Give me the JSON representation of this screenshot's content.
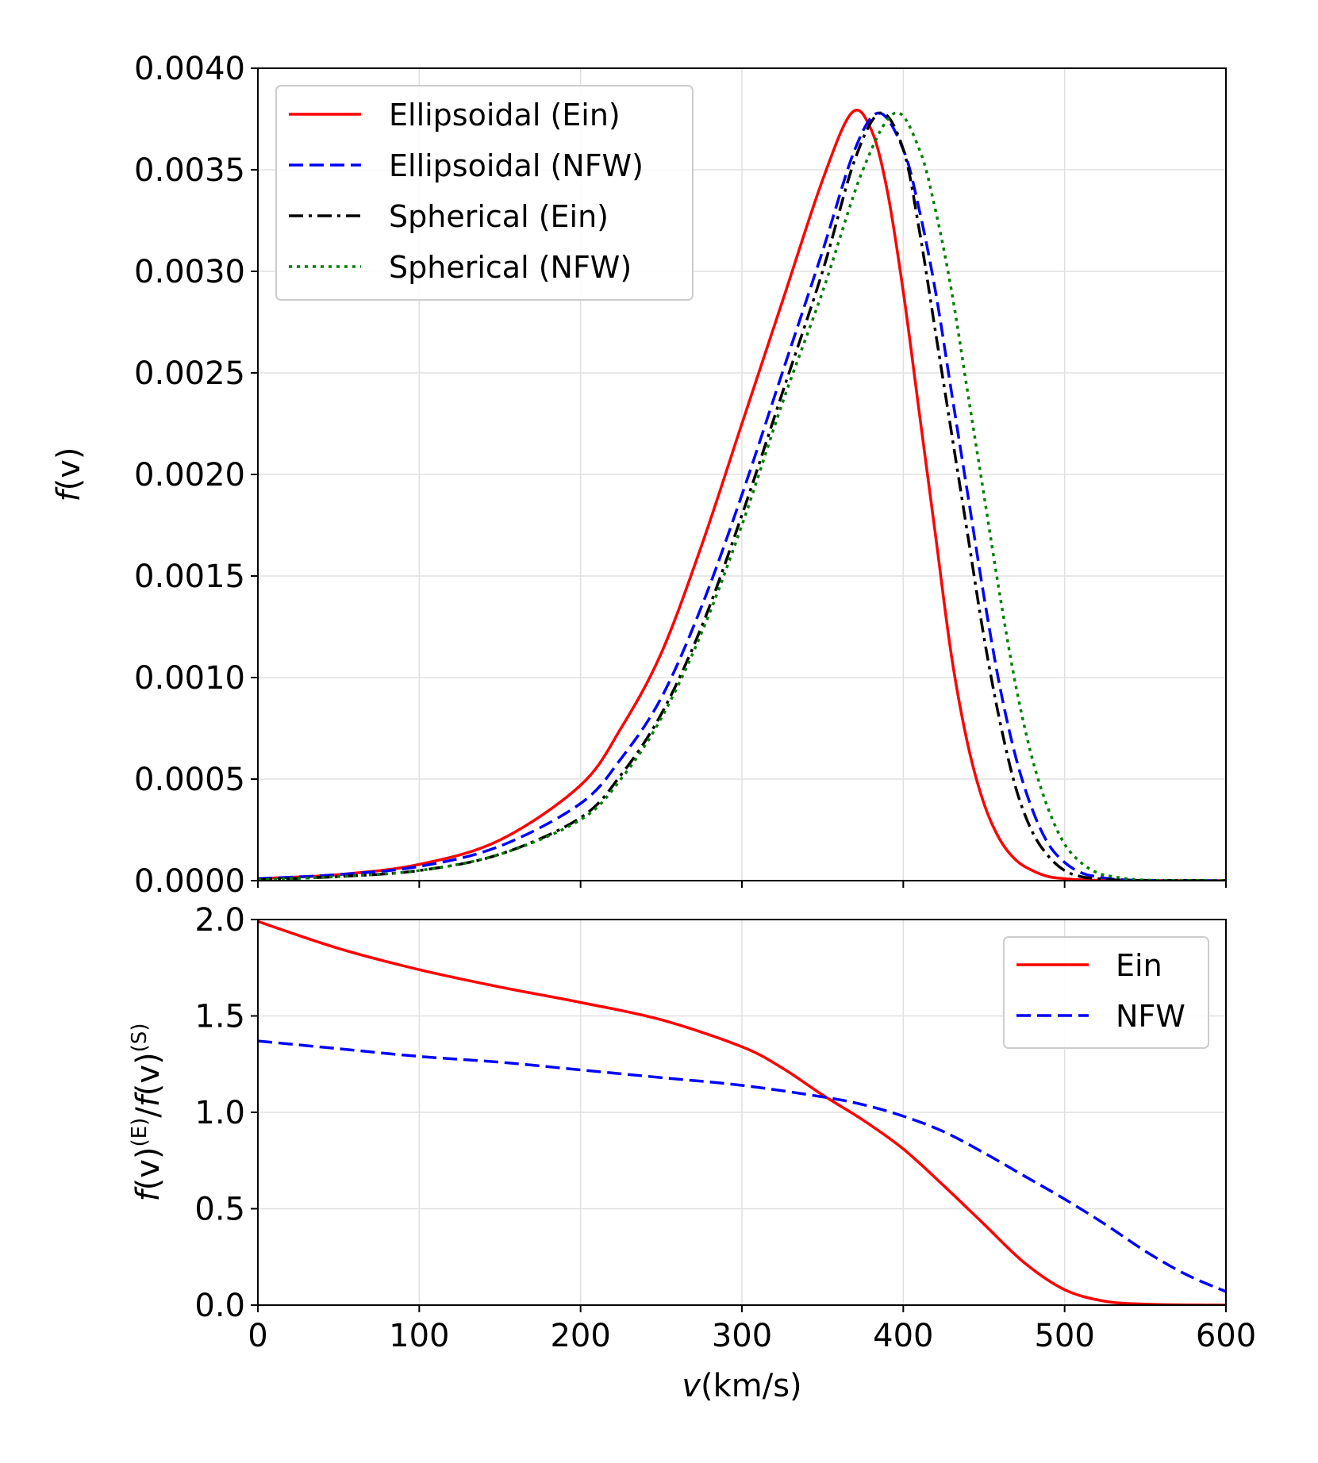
{
  "chart_data": [
    {
      "type": "line",
      "panel": "top",
      "ylabel": "f(v)",
      "xlabel": "",
      "xlim": [
        0,
        600
      ],
      "ylim": [
        0,
        0.004
      ],
      "xticks": [
        "0",
        "100",
        "200",
        "300",
        "400",
        "500",
        "600"
      ],
      "yticks": [
        "0.0000",
        "0.0005",
        "0.0010",
        "0.0015",
        "0.0020",
        "0.0025",
        "0.0030",
        "0.0035",
        "0.0040"
      ],
      "grid": true,
      "legend_position": "top-left",
      "series": [
        {
          "name": "Ellipsoidal (Ein)",
          "color": "#ff0000",
          "style": "solid",
          "x": [
            0,
            50,
            100,
            150,
            200,
            225,
            250,
            275,
            300,
            325,
            350,
            368,
            380,
            390,
            400,
            410,
            420,
            430,
            440,
            450,
            460,
            470,
            480,
            490,
            500,
            520,
            600
          ],
          "y": [
            1e-05,
            3e-05,
            8e-05,
            0.0002,
            0.00047,
            0.00075,
            0.00112,
            0.00165,
            0.00225,
            0.00285,
            0.00345,
            0.00378,
            0.0037,
            0.0034,
            0.0029,
            0.0023,
            0.0017,
            0.0011,
            0.00067,
            0.00038,
            0.0002,
            0.0001,
            5e-05,
            2e-05,
            1e-05,
            2e-06,
            0.0
          ]
        },
        {
          "name": "Ellipsoidal (NFW)",
          "color": "#0000ff",
          "style": "dashed",
          "x": [
            0,
            50,
            100,
            150,
            200,
            225,
            250,
            275,
            300,
            325,
            350,
            370,
            385,
            400,
            410,
            420,
            430,
            440,
            450,
            460,
            470,
            480,
            490,
            500,
            510,
            520,
            540,
            600
          ],
          "y": [
            1e-05,
            3e-05,
            7e-05,
            0.00017,
            0.00038,
            0.0006,
            0.0009,
            0.00135,
            0.0019,
            0.0025,
            0.0031,
            0.0036,
            0.00378,
            0.0036,
            0.0033,
            0.0029,
            0.0024,
            0.0019,
            0.0014,
            0.00095,
            0.0006,
            0.00035,
            0.00018,
            9e-05,
            4e-05,
            2e-05,
            3e-06,
            0.0
          ]
        },
        {
          "name": "Spherical (Ein)",
          "color": "#000000",
          "style": "dashdot",
          "x": [
            0,
            50,
            100,
            150,
            200,
            225,
            250,
            275,
            300,
            325,
            350,
            370,
            386,
            400,
            410,
            420,
            430,
            440,
            450,
            460,
            470,
            480,
            490,
            500,
            510,
            520,
            540,
            600
          ],
          "y": [
            5e-06,
            2e-05,
            5e-05,
            0.00013,
            0.00031,
            0.00052,
            0.00082,
            0.00125,
            0.0018,
            0.0024,
            0.003,
            0.00355,
            0.00378,
            0.0036,
            0.0032,
            0.0027,
            0.0022,
            0.0017,
            0.0012,
            0.00078,
            0.00045,
            0.00024,
            0.00012,
            5e-05,
            2e-05,
            1e-05,
            2e-06,
            0.0
          ]
        },
        {
          "name": "Spherical (NFW)",
          "color": "#008000",
          "style": "dotted",
          "x": [
            0,
            50,
            100,
            150,
            200,
            225,
            250,
            275,
            300,
            325,
            350,
            375,
            395,
            410,
            420,
            430,
            440,
            450,
            460,
            470,
            480,
            490,
            500,
            510,
            520,
            530,
            550,
            600
          ],
          "y": [
            5e-06,
            2e-05,
            5e-05,
            0.00013,
            0.0003,
            0.0005,
            0.0008,
            0.00122,
            0.00175,
            0.00235,
            0.0029,
            0.0035,
            0.00378,
            0.0036,
            0.0033,
            0.0029,
            0.0024,
            0.0019,
            0.0014,
            0.00095,
            0.0006,
            0.00035,
            0.00018,
            9e-05,
            4e-05,
            2e-05,
            3e-06,
            0.0
          ]
        }
      ]
    },
    {
      "type": "line",
      "panel": "bottom",
      "ylabel": "f(v)(E)/f(v)(S)",
      "xlabel": "v(km/s)",
      "xlim": [
        0,
        600
      ],
      "ylim": [
        0,
        2.0
      ],
      "xticks": [
        "0",
        "100",
        "200",
        "300",
        "400",
        "500",
        "600"
      ],
      "yticks": [
        "0.0",
        "0.5",
        "1.0",
        "1.5",
        "2.0"
      ],
      "grid": true,
      "legend_position": "top-right",
      "series": [
        {
          "name": "Ein",
          "color": "#ff0000",
          "style": "solid",
          "x": [
            0,
            50,
            100,
            150,
            200,
            250,
            300,
            325,
            350,
            375,
            400,
            425,
            450,
            475,
            500,
            525,
            550,
            575,
            600
          ],
          "y": [
            1.99,
            1.85,
            1.74,
            1.65,
            1.57,
            1.48,
            1.34,
            1.23,
            1.09,
            0.96,
            0.81,
            0.62,
            0.42,
            0.22,
            0.08,
            0.02,
            0.005,
            0.001,
            0.0
          ]
        },
        {
          "name": "NFW",
          "color": "#0000ff",
          "style": "dashed",
          "x": [
            0,
            50,
            100,
            150,
            200,
            250,
            300,
            350,
            375,
            400,
            425,
            450,
            475,
            500,
            525,
            550,
            575,
            600
          ],
          "y": [
            1.37,
            1.33,
            1.29,
            1.26,
            1.22,
            1.18,
            1.14,
            1.08,
            1.04,
            0.98,
            0.9,
            0.79,
            0.67,
            0.55,
            0.42,
            0.28,
            0.16,
            0.07
          ]
        }
      ]
    }
  ]
}
